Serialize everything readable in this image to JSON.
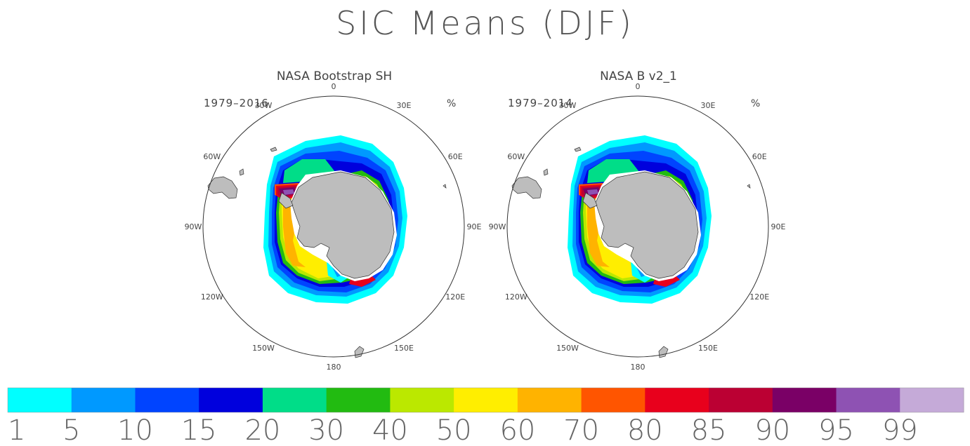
{
  "title": "SIC Means (DJF)",
  "unit": "%",
  "panels": [
    {
      "title": "NASA Bootstrap SH",
      "period": "1979–2016"
    },
    {
      "title": "NASA B v2_1",
      "period": "1979–2014"
    }
  ],
  "longitude_labels": [
    "0",
    "30E",
    "60E",
    "90E",
    "120E",
    "150E",
    "180",
    "150W",
    "120W",
    "90W",
    "60W",
    "30W"
  ],
  "colorbar": {
    "labels": [
      "1",
      "5",
      "10",
      "15",
      "20",
      "30",
      "40",
      "50",
      "60",
      "70",
      "80",
      "85",
      "90",
      "95",
      "99"
    ],
    "colors": [
      "#00ffff",
      "#0099ff",
      "#0044ff",
      "#0000dd",
      "#00dd88",
      "#22bb11",
      "#bbe800",
      "#ffee00",
      "#ffb300",
      "#ff5500",
      "#e8001c",
      "#bb0033",
      "#7a0066",
      "#8e52b3",
      "#c5aad8"
    ]
  },
  "colors": {
    "land": "#bdbdbd",
    "outline": "#333333"
  }
}
